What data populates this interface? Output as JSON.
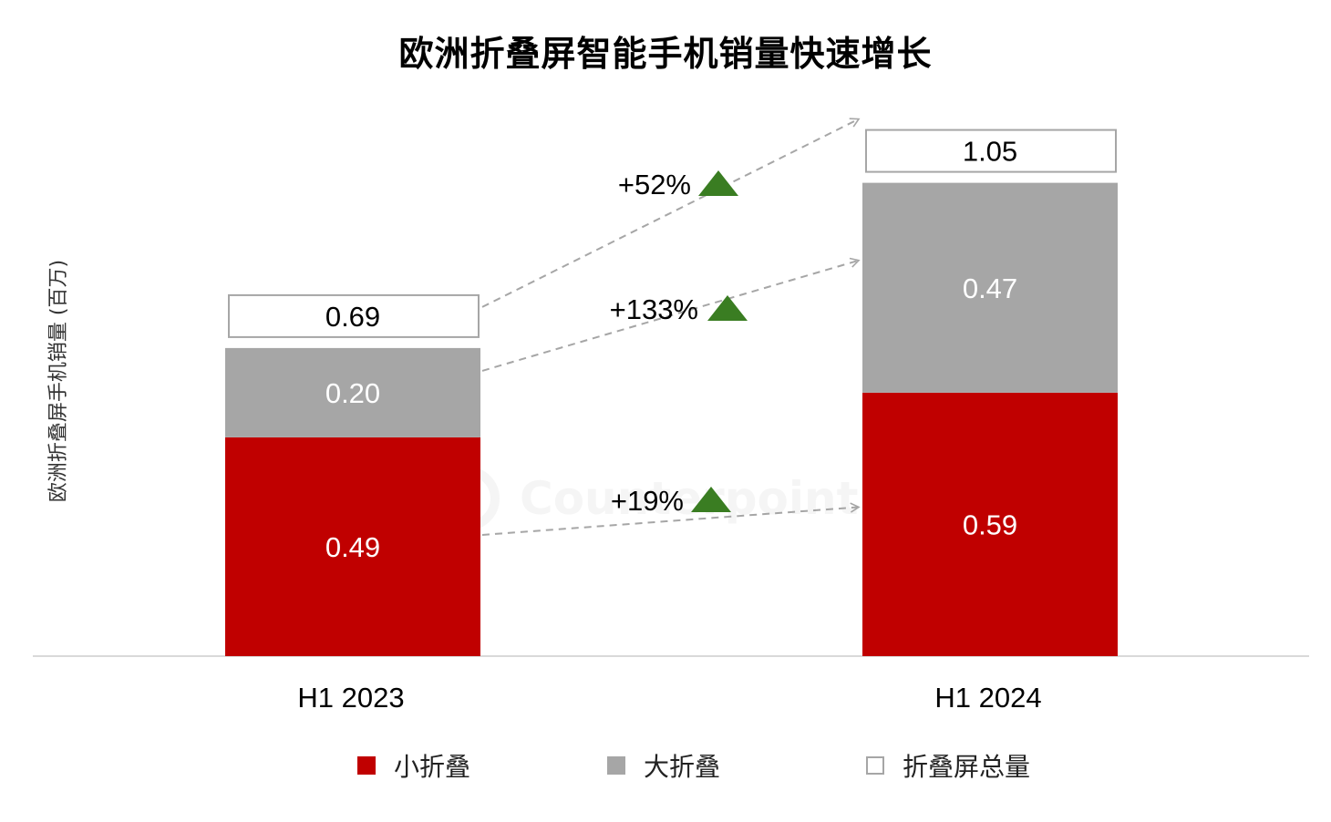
{
  "chart_data": {
    "type": "bar",
    "stacked": true,
    "title": "欧洲折叠屏智能手机销量快速增长",
    "ylabel": "欧洲折叠屏手机销量 (百万)",
    "xlabel": "",
    "categories": [
      "H1 2023",
      "H1 2024"
    ],
    "series": [
      {
        "name": "小折叠",
        "values": [
          0.49,
          0.59
        ],
        "value_labels": [
          "0.49",
          "0.59"
        ],
        "color": "#C00000"
      },
      {
        "name": "大折叠",
        "values": [
          0.2,
          0.47
        ],
        "value_labels": [
          "0.20",
          "0.47"
        ],
        "color": "#A6A6A6"
      }
    ],
    "totals": {
      "name": "折叠屏总量",
      "values": [
        0.69,
        1.05
      ],
      "labels": [
        "0.69",
        "1.05"
      ]
    },
    "growth": [
      {
        "series": "折叠屏总量",
        "label": "+52%"
      },
      {
        "series": "大折叠",
        "label": "+133%"
      },
      {
        "series": "小折叠",
        "label": "+19%"
      }
    ],
    "growth_marker_color": "#3A7D22",
    "legend": {
      "position": "bottom",
      "items": [
        "小折叠",
        "大折叠",
        "折叠屏总量"
      ]
    },
    "ylim": [
      0,
      1.2
    ],
    "grid": false
  },
  "watermark": {
    "text": "Counterpoint"
  }
}
